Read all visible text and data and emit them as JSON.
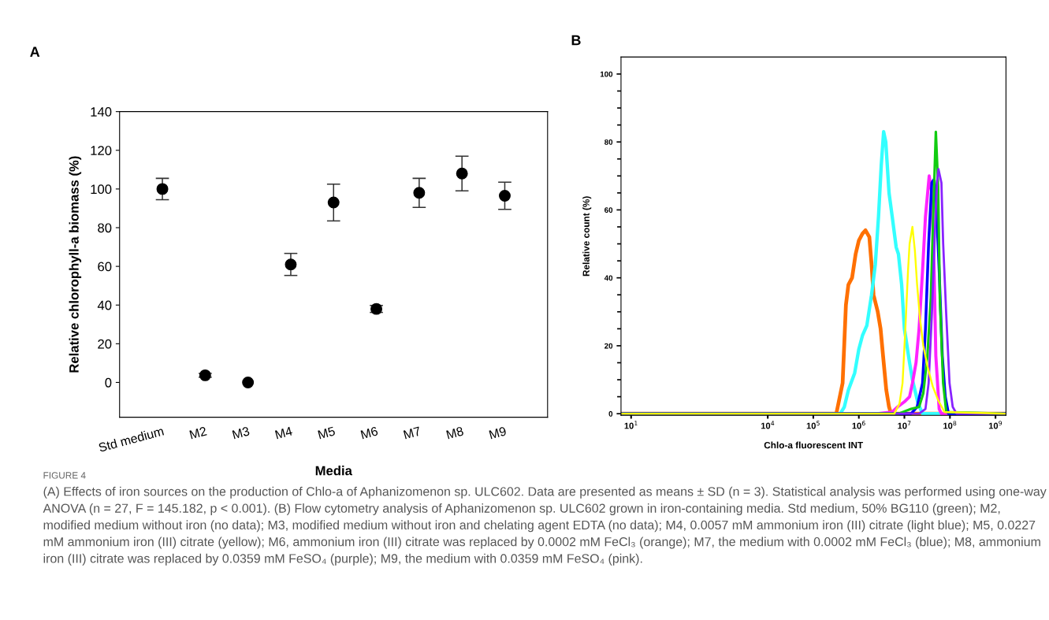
{
  "chart_data": [
    {
      "type": "scatter",
      "title": "A",
      "xlabel": "Media",
      "ylabel": "Relative chlorophyll-a biomass (%)",
      "categories": [
        "Std medium",
        "M2",
        "M3",
        "M4",
        "M5",
        "M6",
        "M7",
        "M8",
        "M9"
      ],
      "values": [
        100,
        3.7,
        0,
        61,
        93,
        38,
        98,
        108,
        96.5
      ],
      "errors": [
        5.5,
        1,
        null,
        5.7,
        9.5,
        1.8,
        7.5,
        9,
        7
      ],
      "color": "#000000",
      "marker": "circle",
      "grid": false,
      "ylim": [
        -18,
        140
      ],
      "yticks": [
        0,
        20,
        40,
        60,
        80,
        100,
        120,
        140
      ],
      "annotations": [
        "FIGURE 4",
        "(A) Effects of iron sources on the production of Chlo-a of Aphanizomenon sp. ULC602. Data are presented as means ± SD (n = 3). Statistical analysis was performed using one-way ANOVA (n = 27, F = 145.182, p < 0.001). (B) Flow cytometry analysis of Aphanizomenon sp. ULC602 grown in iron-containing media. Std medium, 50% BG110 (green); M2, modified medium without iron (no data); M3, modified medium without iron and chelating agent EDTA (no data); M4, 0.0057 mM ammonium iron (III) citrate (light blue); M5, 0.0227 mM ammonium iron (III) citrate (yellow); M6, ammonium iron (III) citrate was replaced by 0.0002 mM FeCl₃ (orange); M7, the medium with 0.0002 mM FeCl₃ (blue); M8, ammonium iron (III) citrate was replaced by 0.0359 mM FeSO₄ (purple); M9, the medium with 0.0359 mM FeSO₄ (pink)."
      ]
    },
    {
      "type": "line",
      "title": "B",
      "xlabel": "Chlo-a fluorescent INT",
      "ylabel": "Relative count (%)",
      "log": "x",
      "grid": false,
      "marker": "none",
      "line_style": "solid",
      "xlim": [
        6,
        1700000000.0
      ],
      "xticks": [
        {
          "value": 10,
          "label": "10$^{1}$"
        },
        {
          "value": 10000.0,
          "label": "10$^{4}$"
        },
        {
          "value": 100000.0,
          "label": "10$^{5}$"
        },
        {
          "value": 1000000.0,
          "label": "10$^{6}$"
        },
        {
          "value": 10000000.0,
          "label": "10$^{7}$"
        },
        {
          "value": 100000000.0,
          "label": "10$^{8}$"
        },
        {
          "value": 1000000000.0,
          "label": "10$^{9}$"
        }
      ],
      "ylim": [
        -0.5,
        105
      ],
      "yticks": [
        0,
        {
          "value": 5,
          "label": null
        },
        {
          "value": 10,
          "label": null
        },
        {
          "value": 15,
          "label": null
        },
        20,
        {
          "value": 25,
          "label": null
        },
        {
          "value": 30,
          "label": null
        },
        {
          "value": 35,
          "label": null
        },
        40,
        {
          "value": 45,
          "label": null
        },
        {
          "value": 50,
          "label": null
        },
        {
          "value": 55,
          "label": null
        },
        60,
        {
          "value": 65,
          "label": null
        },
        {
          "value": 70,
          "label": null
        },
        {
          "value": 75,
          "label": null
        },
        80,
        {
          "value": 85,
          "label": null
        },
        {
          "value": 90,
          "label": null
        },
        {
          "value": 95,
          "label": null
        },
        100
      ],
      "series": [
        {
          "color": "#ff7000",
          "x": [
            6,
            320000.0,
            440000.0,
            480000.0,
            520000.0,
            590000.0,
            710000.0,
            850000.0,
            1000000.0,
            1200000.0,
            1400000.0,
            1700000.0,
            1900000.0,
            2100000.0,
            2600000.0,
            3000000.0,
            3400000.0,
            4000000.0,
            4600000.0,
            5100000.0,
            1600000000.0
          ],
          "values": [
            0,
            0,
            9,
            21,
            32,
            38,
            40,
            47,
            51,
            53,
            54,
            52,
            44,
            35,
            30,
            25,
            17,
            7,
            2,
            0,
            0
          ]
        },
        {
          "color": "#33ffff",
          "x": [
            6,
            390000.0,
            480000.0,
            590000.0,
            810000.0,
            1000000.0,
            1200000.0,
            1500000.0,
            1900000.0,
            2300000.0,
            2700000.0,
            3100000.0,
            3500000.0,
            3900000.0,
            4600000.0,
            5400000.0,
            6600000.0,
            7400000.0,
            8700000.0,
            10000000.0,
            13000000.0,
            15000000.0,
            20000000.0,
            25000000.0,
            1600000000.0
          ],
          "values": [
            0,
            0,
            2,
            7,
            12,
            19,
            23,
            26,
            35,
            44,
            58,
            73,
            83,
            80,
            65,
            58,
            49,
            47,
            38,
            25,
            15,
            10,
            3,
            0,
            0
          ]
        },
        {
          "color": "#ff22ff",
          "x": [
            6,
            2500000.0,
            5400000.0,
            7100000.0,
            10000000.0,
            13000000.0,
            15000000.0,
            18000000.0,
            21000000.0,
            25000000.0,
            29000000.0,
            35000000.0,
            40000000.0,
            45000000.0,
            49000000.0,
            58000000.0,
            65000000.0,
            1600000000.0
          ],
          "values": [
            0,
            0,
            0.5,
            2,
            3.5,
            5,
            9,
            15,
            25,
            42,
            58,
            70,
            65,
            42,
            17,
            1.4,
            0,
            0
          ]
        },
        {
          "color": "#0000ff",
          "x": [
            6,
            14000000.0,
            19000000.0,
            25000000.0,
            29000000.0,
            34000000.0,
            40000000.0,
            45000000.0,
            49000000.0,
            58000000.0,
            68000000.0,
            79000000.0,
            93000000.0,
            1600000000.0
          ],
          "values": [
            0,
            0,
            2,
            9,
            25,
            50,
            68,
            69,
            65,
            42,
            17,
            5,
            0,
            0
          ]
        },
        {
          "color": "#11cc11",
          "x": [
            6,
            7400000.0,
            14000000.0,
            21000000.0,
            26000000.0,
            32000000.0,
            38000000.0,
            44000000.0,
            49000000.0,
            55000000.0,
            60000000.0,
            71000000.0,
            83000000.0,
            1600000000.0
          ],
          "values": [
            0,
            0,
            1.4,
            2,
            6,
            17,
            34,
            63,
            83,
            67,
            34,
            9,
            0.5,
            0
          ]
        },
        {
          "color": "#8822ff",
          "x": [
            6,
            21000000.0,
            29000000.0,
            34000000.0,
            40000000.0,
            47000000.0,
            52000000.0,
            56000000.0,
            65000000.0,
            71000000.0,
            83000000.0,
            98000000.0,
            115000000.0,
            140000000.0,
            1600000000.0
          ],
          "values": [
            0,
            0,
            1.4,
            9,
            29,
            54,
            68,
            72,
            68,
            50,
            29,
            9,
            2,
            0,
            0
          ]
        },
        {
          "color": "#ffff00",
          "x": [
            6,
            6000000.0,
            7800000.0,
            9100000.0,
            10500000.0,
            12000000.0,
            13000000.0,
            15000000.0,
            17000000.0,
            19000000.0,
            22000000.0,
            26000000.0,
            32000000.0,
            42000000.0,
            55000000.0,
            76000000.0,
            1600000000.0
          ],
          "values": [
            0,
            0,
            3,
            9,
            25,
            42,
            50,
            55,
            48,
            38,
            28,
            20,
            14,
            8,
            4,
            0.5,
            0
          ]
        }
      ]
    }
  ]
}
